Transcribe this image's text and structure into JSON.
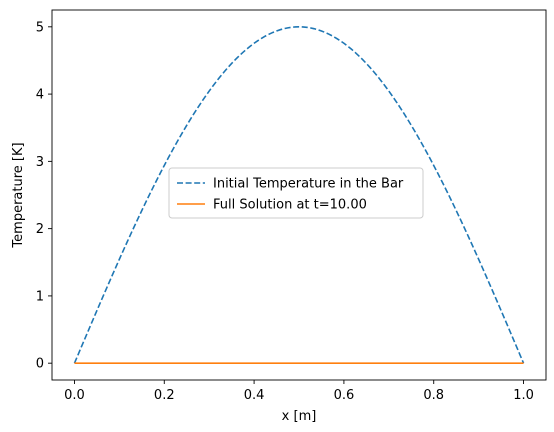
{
  "chart_data": {
    "type": "line",
    "xlabel": "x [m]",
    "ylabel": "Temperature [K]",
    "xlim": [
      -0.05,
      1.05
    ],
    "ylim": [
      -0.25,
      5.25
    ],
    "xticks": [
      0.0,
      0.2,
      0.4,
      0.6,
      0.8,
      1.0
    ],
    "xtick_labels": [
      "0.0",
      "0.2",
      "0.4",
      "0.6",
      "0.8",
      "1.0"
    ],
    "yticks": [
      0,
      1,
      2,
      3,
      4,
      5
    ],
    "ytick_labels": [
      "0",
      "1",
      "2",
      "3",
      "4",
      "5"
    ],
    "grid": false,
    "legend_position": "center",
    "series": [
      {
        "name": "Initial Temperature in the Bar",
        "color": "#1f77b4",
        "style": "dashed",
        "x": [
          0.0,
          0.05,
          0.1,
          0.15,
          0.2,
          0.25,
          0.3,
          0.35,
          0.4,
          0.45,
          0.5,
          0.55,
          0.6,
          0.65,
          0.7,
          0.75,
          0.8,
          0.85,
          0.9,
          0.95,
          1.0
        ],
        "y": [
          0.0,
          0.78,
          1.55,
          2.27,
          2.94,
          3.54,
          4.05,
          4.46,
          4.76,
          4.94,
          5.0,
          4.94,
          4.76,
          4.46,
          4.05,
          3.54,
          2.94,
          2.27,
          1.55,
          0.78,
          0.0
        ]
      },
      {
        "name": "Full Solution at t=10.00",
        "color": "#ff7f0e",
        "style": "solid",
        "x": [
          0.0,
          0.25,
          0.5,
          0.75,
          1.0
        ],
        "y": [
          0.0,
          0.0,
          0.0,
          0.0,
          0.0
        ]
      }
    ]
  }
}
